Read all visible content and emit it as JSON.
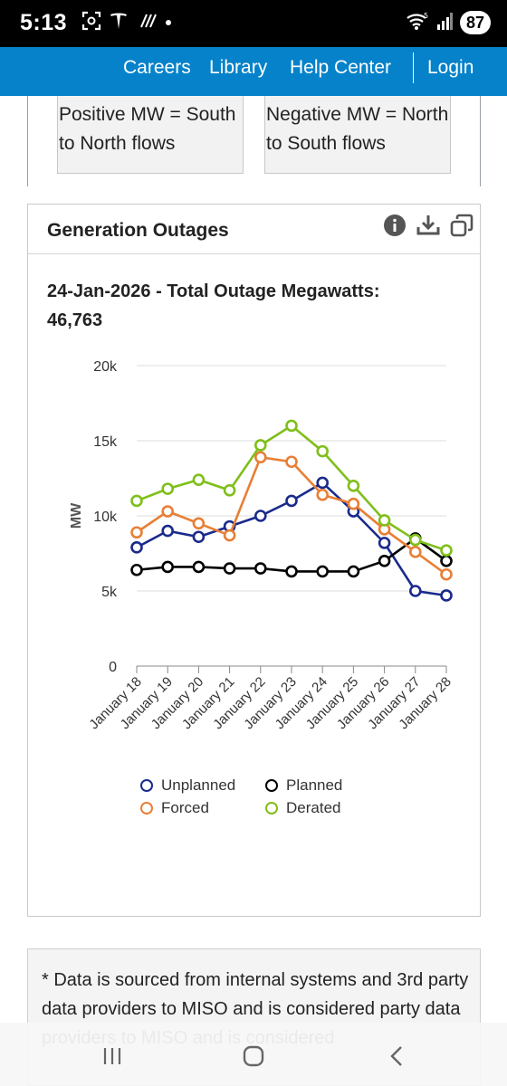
{
  "status": {
    "time": "5:13",
    "battery": "87"
  },
  "nav": {
    "careers": "Careers",
    "library": "Library",
    "help": "Help Center",
    "login": "Login"
  },
  "notes": {
    "positive": "Positive MW = South to North flows",
    "negative": "Negative MW = North to South flows"
  },
  "panel": {
    "title": "Generation Outages",
    "heading_line1": "24-Jan-2026 - Total Outage Megawatts:",
    "heading_line2": "46,763"
  },
  "colors": {
    "brand": "#0582ca",
    "unplanned": "#1a2a8c",
    "planned": "#000000",
    "forced": "#e87f36",
    "derated": "#7fbf1a"
  },
  "icons": [
    "info-icon",
    "download-icon",
    "expand-icon"
  ],
  "chart_data": {
    "type": "line",
    "ylabel": "MW",
    "xlabel": "",
    "ylim": [
      0,
      20000
    ],
    "y_ticks": [
      0,
      5000,
      10000,
      15000,
      20000
    ],
    "y_tick_labels": [
      "0",
      "5k",
      "10k",
      "15k",
      "20k"
    ],
    "categories": [
      "January 18",
      "January 19",
      "January 20",
      "January 21",
      "January 22",
      "January 23",
      "January 24",
      "January 25",
      "January 26",
      "January 27",
      "January 28"
    ],
    "series": [
      {
        "name": "Unplanned",
        "color": "#1a2a8c",
        "values": [
          7900,
          9000,
          8600,
          9300,
          10000,
          11000,
          12200,
          10300,
          8200,
          5000,
          4700
        ]
      },
      {
        "name": "Planned",
        "color": "#000000",
        "values": [
          6400,
          6600,
          6600,
          6500,
          6500,
          6300,
          6300,
          6300,
          7000,
          8500,
          7000
        ]
      },
      {
        "name": "Forced",
        "color": "#e87f36",
        "values": [
          8900,
          10300,
          9500,
          8700,
          13900,
          13600,
          11400,
          10800,
          9100,
          7600,
          6100
        ]
      },
      {
        "name": "Derated",
        "color": "#7fbf1a",
        "values": [
          11000,
          11800,
          12400,
          11700,
          14700,
          16000,
          14300,
          12000,
          9700,
          8400,
          7700
        ]
      }
    ],
    "legend_position": "bottom",
    "grid": true
  },
  "disclaimer": "* Data is sourced from internal systems and 3rd party data providers to MISO and is considered party data providers to MISO and is considered"
}
